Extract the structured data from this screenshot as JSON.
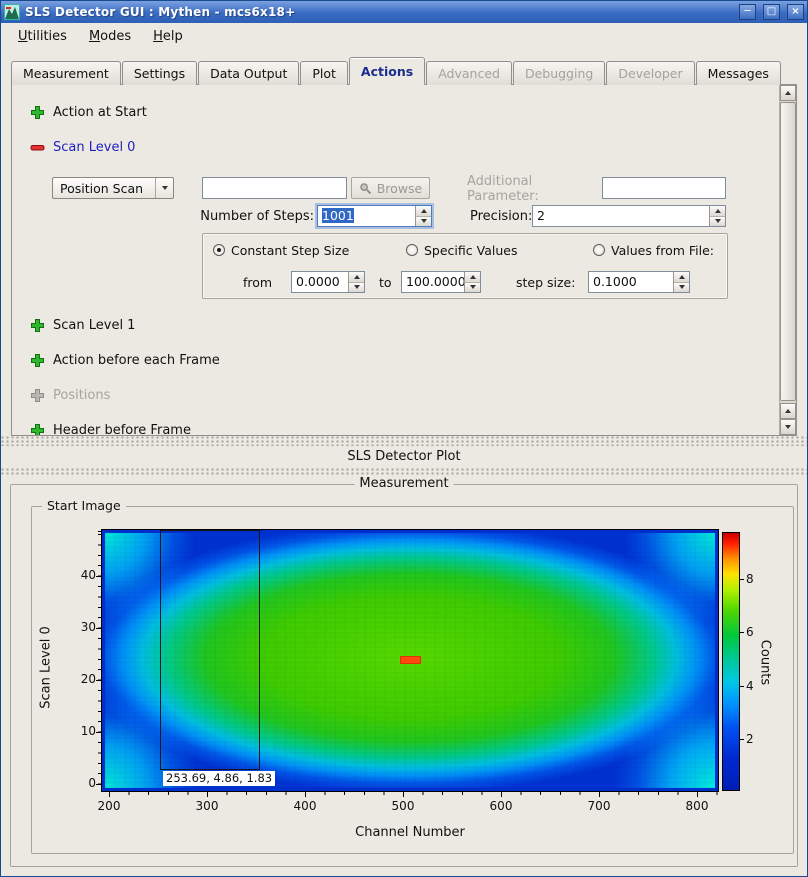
{
  "window": {
    "title": "SLS Detector GUI : Mythen - mcs6x18+"
  },
  "icons": {
    "minimize": "─",
    "maximize": "□",
    "close": "×"
  },
  "menu": {
    "utilities": "Utilities",
    "modes": "Modes",
    "help": "Help"
  },
  "tabs": {
    "measurement": "Measurement",
    "settings": "Settings",
    "data_output": "Data Output",
    "plot": "Plot",
    "actions": "Actions",
    "advanced": "Advanced",
    "debugging": "Debugging",
    "developer": "Developer",
    "messages": "Messages"
  },
  "actions": {
    "action_at_start": "Action at Start",
    "scan_level_0": "Scan Level 0",
    "scan_mode_value": "Position Scan",
    "script_value": "",
    "browse": "Browse",
    "additional_parameter": "Additional Parameter:",
    "additional_parameter_value": "",
    "number_of_steps": "Number of Steps:",
    "number_of_steps_value": "1001",
    "precision": "Precision:",
    "precision_value": "2",
    "constant_step_size": "Constant Step Size",
    "specific_values": "Specific Values",
    "values_from_file": "Values from File:",
    "from": "from",
    "from_value": "0.0000",
    "to": "to",
    "to_value": "100.0000",
    "step_size": "step size:",
    "step_size_value": "0.1000",
    "scan_level_1": "Scan Level 1",
    "action_before_each_frame": "Action before each Frame",
    "positions": "Positions",
    "header_before_frame": "Header before Frame"
  },
  "plot_dock": {
    "title": "SLS Detector Plot",
    "group": "Measurement",
    "subgroup": "Start Image"
  },
  "chart_data": {
    "type": "heatmap",
    "title": "Start Image",
    "xlabel": "Channel Number",
    "ylabel": "Scan Level 0",
    "colorbar_label": "Counts",
    "x_ticks": [
      "200",
      "300",
      "400",
      "500",
      "600",
      "700",
      "800"
    ],
    "y_ticks": [
      "0",
      "10",
      "20",
      "30",
      "40"
    ],
    "colorbar_ticks": [
      "2",
      "4",
      "6",
      "8"
    ],
    "x_range": [
      192,
      822
    ],
    "y_range": [
      -1.5,
      49
    ],
    "z_range": [
      0,
      10
    ],
    "colormap": "jet",
    "colorbar_position": "right",
    "grid": false,
    "pattern": "smooth elliptical intensity peak centered near channel 510, scan level 24; green plateau (~5-7 counts) over the middle, falling to blue (~2-3) at the edges, cyan (~4) in the four corners, small saturated red maximum at the center",
    "peak": {
      "x": 510,
      "y": 24.5,
      "value": 10
    },
    "cursor_readout": "253.69, 4.86, 1.83"
  }
}
